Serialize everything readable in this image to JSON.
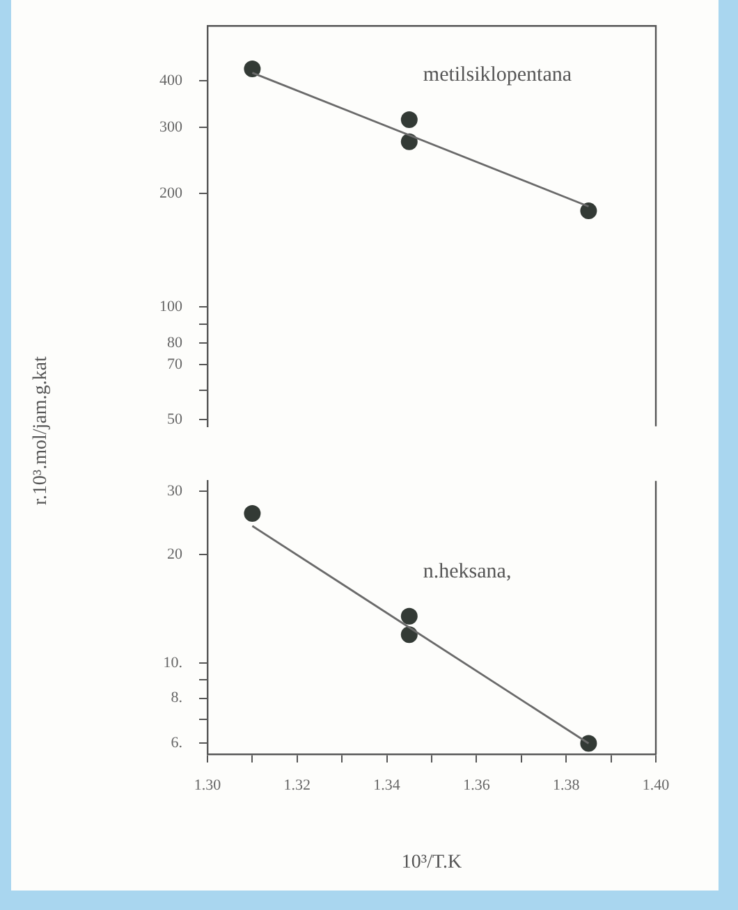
{
  "chart_data": [
    {
      "type": "scatter",
      "ylabel": "r.10³.mol/jam.g.kat",
      "xlim": [
        1.3,
        1.4
      ],
      "ylim": [
        48,
        560
      ],
      "log": "y",
      "grid": false,
      "tick_labels": "y",
      "marker": "circle",
      "yticks": [
        50,
        {
          "value": 60,
          "label": null
        },
        70,
        80,
        {
          "value": 90,
          "label": null
        },
        100,
        200,
        300,
        400
      ],
      "series": [
        {
          "name": "metilsiklopentana",
          "type": "scatter",
          "color": "#333a35",
          "x": [
            1.31,
            1.345,
            1.345,
            1.385
          ],
          "values": [
            430,
            315,
            275,
            180
          ]
        },
        {
          "type": "line",
          "color": "#6a6a6a",
          "marker": "none",
          "x": [
            1.31,
            1.385
          ],
          "values": [
            420,
            185
          ]
        }
      ]
    },
    {
      "type": "scatter",
      "xlabel": "10³/T.K",
      "xlim": [
        1.3,
        1.4
      ],
      "ylim": [
        5.6,
        32
      ],
      "log": "y",
      "grid": false,
      "marker": "circle",
      "xticks": [
        {
          "value": 1.3,
          "label": "1.30"
        },
        {
          "value": 1.31,
          "label": null
        },
        1.32,
        {
          "value": 1.33,
          "label": null
        },
        1.34,
        {
          "value": 1.35,
          "label": null
        },
        1.36,
        {
          "value": 1.37,
          "label": null
        },
        1.38,
        {
          "value": 1.39,
          "label": null
        },
        {
          "value": 1.4,
          "label": "1.40"
        }
      ],
      "yticks": [
        {
          "value": 6,
          "label": "6."
        },
        {
          "value": 7,
          "label": null
        },
        {
          "value": 8,
          "label": "8."
        },
        {
          "value": 9,
          "label": null
        },
        {
          "value": 10,
          "label": "10."
        },
        20,
        30
      ],
      "series": [
        {
          "name": "n.heksana,",
          "type": "scatter",
          "color": "#333a35",
          "x": [
            1.31,
            1.345,
            1.345,
            1.385
          ],
          "values": [
            26,
            13.5,
            12,
            6
          ]
        },
        {
          "type": "line",
          "color": "#6a6a6a",
          "marker": "none",
          "x": [
            1.31,
            1.385
          ],
          "values": [
            24,
            6
          ]
        }
      ]
    }
  ]
}
